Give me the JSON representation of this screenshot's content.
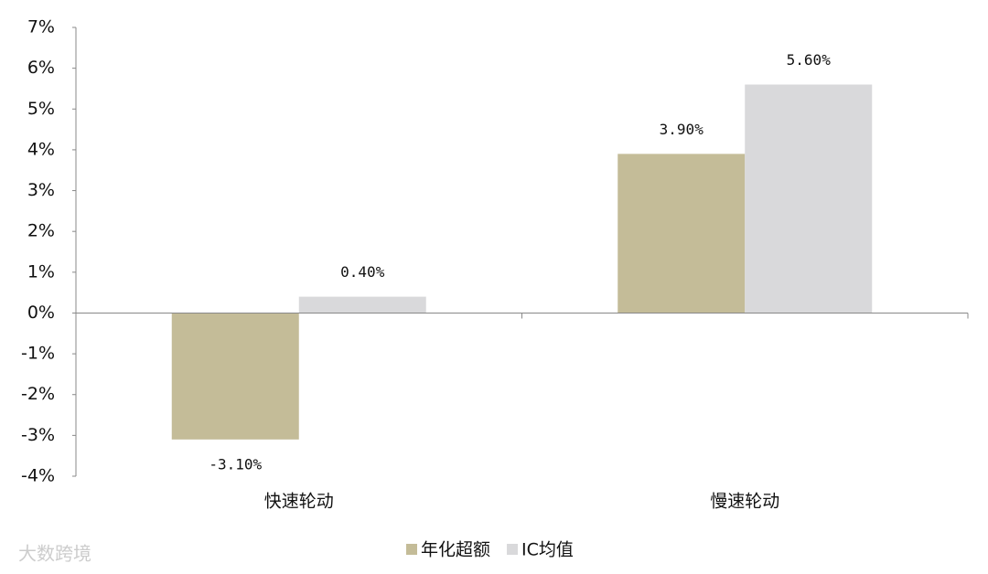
{
  "chart_data": {
    "type": "bar",
    "categories": [
      "快速轮动",
      "慢速轮动"
    ],
    "series": [
      {
        "name": "年化超额",
        "color": "#c4bc98",
        "values": [
          -3.1,
          3.9
        ],
        "value_labels": [
          "-3.10%",
          "3.90%"
        ]
      },
      {
        "name": "IC均值",
        "color": "#d9d9db",
        "values": [
          0.4,
          5.6
        ],
        "value_labels": [
          "0.40%",
          "5.60%"
        ]
      }
    ],
    "ylim": [
      -4,
      7
    ],
    "yticks": [
      {
        "value": -4,
        "label": "-4%"
      },
      {
        "value": -3,
        "label": "-3%"
      },
      {
        "value": -2,
        "label": "-2%"
      },
      {
        "value": -1,
        "label": "-1%"
      },
      {
        "value": 0,
        "label": "0%"
      },
      {
        "value": 1,
        "label": "1%"
      },
      {
        "value": 2,
        "label": "2%"
      },
      {
        "value": 3,
        "label": "3%"
      },
      {
        "value": 4,
        "label": "4%"
      },
      {
        "value": 5,
        "label": "5%"
      },
      {
        "value": 6,
        "label": "6%"
      },
      {
        "value": 7,
        "label": "7%"
      }
    ],
    "legend": "bottom",
    "watermark": "大数跨境"
  }
}
